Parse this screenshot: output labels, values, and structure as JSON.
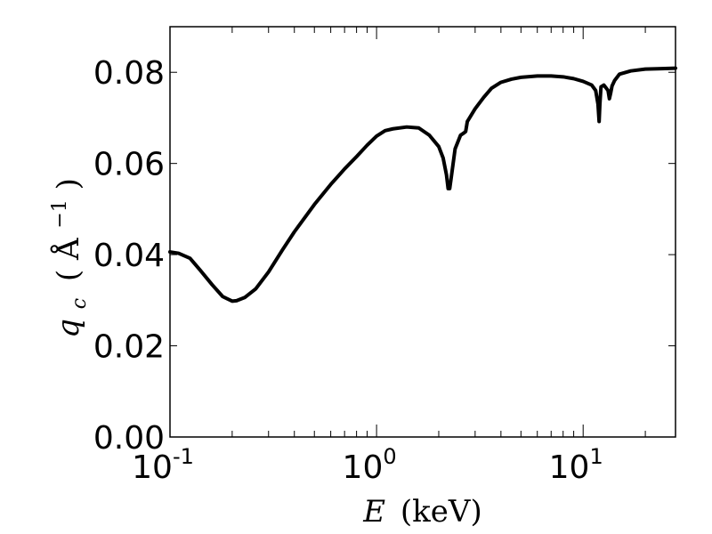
{
  "chart_data": {
    "type": "line",
    "xscale": "log",
    "xlim": [
      0.1,
      28
    ],
    "ylim": [
      0.0,
      0.09
    ],
    "grid": false,
    "xlabel": {
      "symbol": "E",
      "unit": "(keV)"
    },
    "ylabel": {
      "symbol": "q",
      "subscript": "c",
      "unit_open": "(",
      "unit": "Å",
      "sup": "−1",
      "unit_close": ")"
    },
    "x_ticks": [
      {
        "value": 0.1,
        "base": "10",
        "exp": "-1"
      },
      {
        "value": 1,
        "base": "10",
        "exp": "0"
      },
      {
        "value": 10,
        "base": "10",
        "exp": "1"
      }
    ],
    "y_ticks": [
      {
        "value": 0.0,
        "label": "0.00"
      },
      {
        "value": 0.02,
        "label": "0.02"
      },
      {
        "value": 0.04,
        "label": "0.04"
      },
      {
        "value": 0.06,
        "label": "0.06"
      },
      {
        "value": 0.08,
        "label": "0.08"
      }
    ],
    "series": [
      {
        "color": "#000000",
        "x": [
          0.1,
          0.11,
          0.125,
          0.14,
          0.16,
          0.18,
          0.2,
          0.21,
          0.23,
          0.26,
          0.3,
          0.35,
          0.4,
          0.5,
          0.6,
          0.7,
          0.8,
          0.9,
          1.0,
          1.1,
          1.2,
          1.4,
          1.6,
          1.8,
          2.0,
          2.1,
          2.18,
          2.22,
          2.26,
          2.3,
          2.4,
          2.55,
          2.65,
          2.7,
          2.75,
          3.0,
          3.3,
          3.6,
          4.0,
          4.5,
          5.0,
          6.0,
          7.0,
          8.0,
          9.0,
          10.0,
          11.0,
          11.5,
          11.8,
          11.95,
          12.05,
          12.2,
          12.6,
          13.2,
          13.4,
          13.6,
          13.8,
          14.2,
          15.0,
          17.0,
          20.0,
          24.0,
          28.0
        ],
        "y": [
          0.0406,
          0.0403,
          0.0392,
          0.0366,
          0.0334,
          0.0308,
          0.0298,
          0.0299,
          0.0306,
          0.0325,
          0.0362,
          0.041,
          0.045,
          0.051,
          0.0554,
          0.0588,
          0.0615,
          0.064,
          0.066,
          0.0672,
          0.0676,
          0.068,
          0.0678,
          0.0662,
          0.0637,
          0.0612,
          0.0575,
          0.0545,
          0.0545,
          0.057,
          0.0632,
          0.0662,
          0.0667,
          0.067,
          0.0692,
          0.072,
          0.0745,
          0.0765,
          0.0778,
          0.0785,
          0.0789,
          0.0792,
          0.0792,
          0.079,
          0.0786,
          0.078,
          0.0772,
          0.076,
          0.073,
          0.0692,
          0.073,
          0.0768,
          0.0772,
          0.076,
          0.0742,
          0.0755,
          0.077,
          0.0782,
          0.0796,
          0.0803,
          0.0807,
          0.0808,
          0.0809
        ]
      }
    ]
  }
}
